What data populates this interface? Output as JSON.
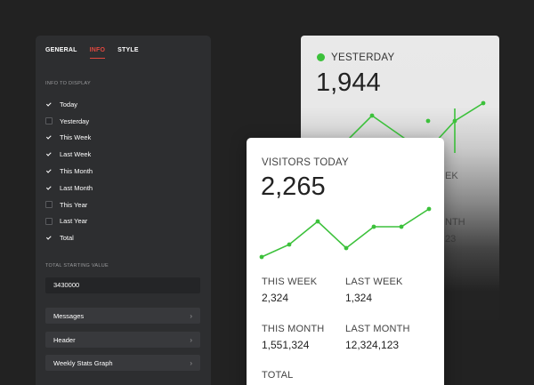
{
  "settings": {
    "tabs": [
      {
        "label": "GENERAL",
        "active": false
      },
      {
        "label": "INFO",
        "active": true
      },
      {
        "label": "STYLE",
        "active": false
      }
    ],
    "info_section_label": "INFO TO DISPLAY",
    "options": [
      {
        "label": "Today",
        "checked": true
      },
      {
        "label": "Yesterday",
        "checked": false
      },
      {
        "label": "This Week",
        "checked": true
      },
      {
        "label": "Last Week",
        "checked": true
      },
      {
        "label": "This Month",
        "checked": true
      },
      {
        "label": "Last Month",
        "checked": true
      },
      {
        "label": "This Year",
        "checked": false
      },
      {
        "label": "Last Year",
        "checked": false
      },
      {
        "label": "Total",
        "checked": true
      }
    ],
    "starting_value_label": "TOTAL STARTING VALUE",
    "starting_value": "3430000",
    "accordions": [
      "Messages",
      "Header",
      "Weekly Stats Graph"
    ]
  },
  "yesterday_card": {
    "label": "YESTERDAY",
    "value": "1,944",
    "ghost_week": "EK",
    "ghost_month": "NTH",
    "ghost_value": "23",
    "status_color": "#3cc13b"
  },
  "visitors_card": {
    "label": "VISITORS TODAY",
    "value": "2,265",
    "stats": [
      {
        "label": "THIS WEEK",
        "value": "2,324"
      },
      {
        "label": "LAST WEEK",
        "value": "1,324"
      },
      {
        "label": "THIS MONTH",
        "value": "1,551,324"
      },
      {
        "label": "LAST MONTH",
        "value": "12,324,123"
      },
      {
        "label": "TOTAL",
        "value": ""
      }
    ],
    "line_color": "#3cc13b"
  },
  "colors": {
    "accent": "#e0483f",
    "graph_green": "#3cc13b"
  }
}
